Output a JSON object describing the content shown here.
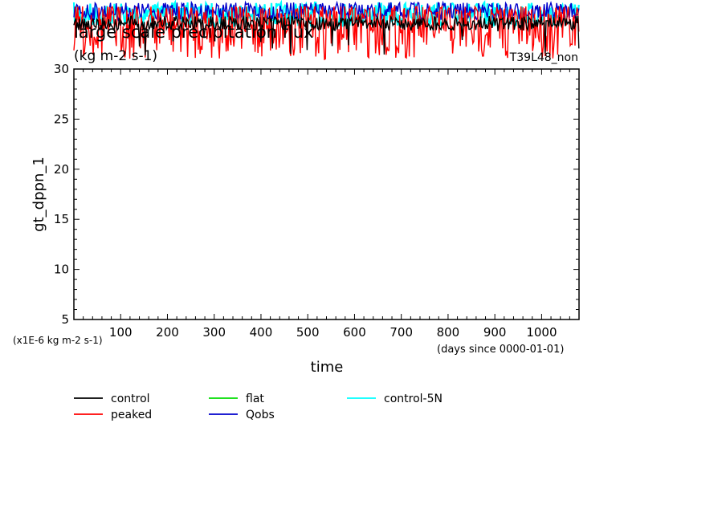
{
  "chart_data": {
    "type": "line",
    "title": "large scale precipitation flux",
    "units": "(kg m-2 s-1)",
    "run_label": "T39L48_non",
    "ylabel": "gt_dppn_1",
    "xlabel": "time",
    "x_unit_note": "(days since 0000-01-01)",
    "y_scale_note": "(x1E-6 kg m-2 s-1)",
    "xlim": [
      0,
      1080
    ],
    "ylim": [
      5,
      30
    ],
    "x_ticks": [
      100,
      200,
      300,
      400,
      500,
      600,
      700,
      800,
      900,
      1000
    ],
    "y_ticks": [
      5,
      10,
      15,
      20,
      25,
      30
    ],
    "legend_position": "bottom",
    "series": [
      {
        "name": "control",
        "color": "#000000"
      },
      {
        "name": "peaked",
        "color": "#ff0000"
      },
      {
        "name": "flat",
        "color": "#00dd00"
      },
      {
        "name": "Qobs",
        "color": "#0000cc"
      },
      {
        "name": "control-5N",
        "color": "#00ffff"
      }
    ],
    "note": "All series values lie above the 30 upper limit of the y axis; only their clipped overflow appears above the plot frame."
  }
}
